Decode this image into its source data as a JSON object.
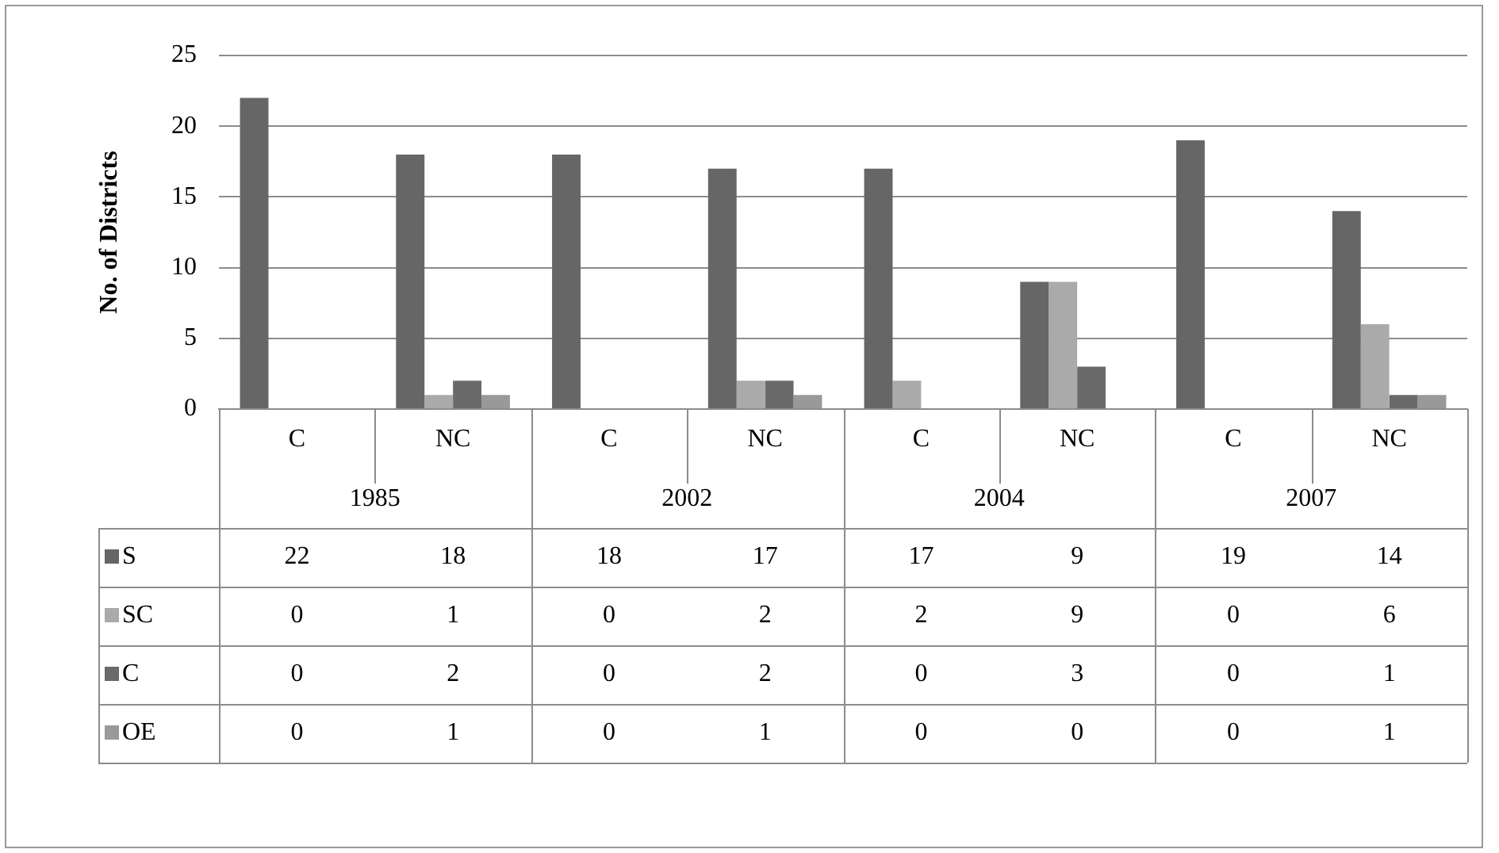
{
  "chart_data": {
    "type": "bar",
    "ylabel": "No. of Districts",
    "categories": [
      "C",
      "NC",
      "C",
      "NC",
      "C",
      "NC",
      "C",
      "NC"
    ],
    "annotations": [
      "1985",
      "2002",
      "2004",
      "2007"
    ],
    "series": [
      {
        "name": "S",
        "color": "#666666",
        "values": [
          22,
          18,
          18,
          17,
          17,
          9,
          19,
          14
        ]
      },
      {
        "name": "SC",
        "color": "#aaaaaa",
        "values": [
          0,
          1,
          0,
          2,
          2,
          9,
          0,
          6
        ]
      },
      {
        "name": "C",
        "color": "#6a6a6a",
        "values": [
          0,
          2,
          0,
          2,
          0,
          3,
          0,
          1
        ]
      },
      {
        "name": "OE",
        "color": "#999999",
        "values": [
          0,
          1,
          0,
          1,
          0,
          0,
          0,
          1
        ]
      }
    ],
    "ylim": [
      0,
      25
    ],
    "yticks": [
      0,
      5,
      10,
      15,
      20,
      25
    ],
    "grid": "y",
    "legend": "bottom left",
    "data_labels": true
  }
}
